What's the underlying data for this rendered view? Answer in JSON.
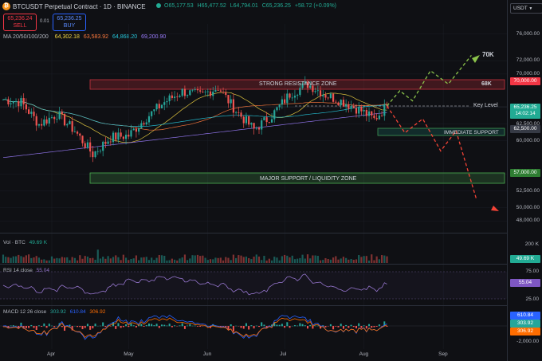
{
  "header": {
    "symbol": "BTCUSDT Perpetual Contract · 1D · BINANCE",
    "open": "O65,177.53",
    "high": "H65,477.52",
    "low": "L64,794.01",
    "close": "C65,236.25",
    "change": "+58.72 (+0.09%)",
    "currency": "USDT"
  },
  "trade": {
    "sell_price": "65,236.24",
    "sell_label": "SELL",
    "spread": "0.01",
    "buy_price": "65,236.25",
    "buy_label": "BUY"
  },
  "ma": {
    "label": "MA 20/50/100/200",
    "v1": "64,302.18",
    "v2": "63,583.92",
    "v3": "64,868.20",
    "v4": "69,200.90",
    "colors": [
      "#f5d742",
      "#ff7a3d",
      "#26c6da",
      "#9c7dff"
    ]
  },
  "annotations": {
    "resistance": "STRONG RESISTANCE ZONE",
    "target_68k": "68K",
    "target_70k": "70K",
    "key_level": "Key Level",
    "immediate_support": "IMMEDIATE SUPPORT",
    "major_support": "MAJOR SUPPORT / LIQUIDITY ZONE"
  },
  "price_tags": {
    "resistance": "70,000.00",
    "current": "65,236.25",
    "countdown": "14:02:14",
    "support": "62,500.00",
    "major": "57,000.00",
    "volume": "49.69 K",
    "rsi": "55.04",
    "macd1": "610.84",
    "macd2": "303.92",
    "macd3": "306.92"
  },
  "volume": {
    "label": "Vol · BTC",
    "value": "49.69 K",
    "axis": "200 K"
  },
  "rsi": {
    "label": "RSI 14 close",
    "value": "55.04",
    "axis_top": "75.00",
    "axis_bottom": "25.00"
  },
  "macd": {
    "label": "MACD 12 26 close",
    "v1": "303.92",
    "v2": "610.84",
    "v3": "306.92",
    "axis": "-2,000.00"
  },
  "chart_data": {
    "type": "candlestick",
    "title": "BTCUSDT Perpetual Contract · 1D · BINANCE",
    "y_ticks": [
      76000,
      72000,
      70000,
      65000,
      62500,
      60000,
      55000,
      52500,
      50000,
      48000
    ],
    "y_tick_labels": [
      "76,000.00",
      "72,000.00",
      "70,000.00",
      "65,000.00",
      "62,500.00",
      "60,000.00",
      "55,000.00",
      "52,500.00",
      "50,000.00",
      "48,000.00"
    ],
    "x_ticks": [
      "Apr",
      "May",
      "Jun",
      "Jul",
      "Aug",
      "Sep"
    ],
    "ylim": [
      46500,
      77500
    ],
    "close_path": [
      [
        "Mar 13",
        66200
      ],
      [
        "Mar 20",
        65800
      ],
      [
        "Mar 27",
        62500
      ],
      [
        "Apr 3",
        64000
      ],
      [
        "Apr 10",
        61500
      ],
      [
        "Apr 17",
        58000
      ],
      [
        "Apr 24",
        60500
      ],
      [
        "May 1",
        60800
      ],
      [
        "May 8",
        63500
      ],
      [
        "May 15",
        65800
      ],
      [
        "May 22",
        67400
      ],
      [
        "May 29",
        66800
      ],
      [
        "Jun 5",
        68000
      ],
      [
        "Jun 12",
        64500
      ],
      [
        "Jun 19",
        61700
      ],
      [
        "Jun 26",
        63800
      ],
      [
        "Jul 3",
        67000
      ],
      [
        "Jul 10",
        68500
      ],
      [
        "Jul 17",
        66900
      ],
      [
        "Jul 24",
        65800
      ],
      [
        "Jul 31",
        64500
      ],
      [
        "Aug 5",
        63200
      ],
      [
        "Aug 10",
        65236
      ]
    ],
    "zones": [
      {
        "name": "STRONG RESISTANCE ZONE",
        "low": 69000,
        "high": 70000
      },
      {
        "name": "IMMEDIATE SUPPORT",
        "low": 62000,
        "high": 63000
      },
      {
        "name": "MAJOR SUPPORT / LIQUIDITY ZONE",
        "low": 55800,
        "high": 57000
      }
    ],
    "key_level": 66700,
    "bull_scenario": [
      [
        "Aug 10",
        65236
      ],
      [
        "Aug 15",
        67500
      ],
      [
        "Aug 20",
        66000
      ],
      [
        "Aug 27",
        70500
      ],
      [
        "Sep 3",
        68500
      ],
      [
        "Sep 12",
        72800
      ]
    ],
    "bear_scenario": [
      [
        "Aug 10",
        65236
      ],
      [
        "Aug 17",
        61200
      ],
      [
        "Aug 24",
        63300
      ],
      [
        "Aug 31",
        58500
      ],
      [
        "Sep 6",
        61500
      ],
      [
        "Sep 14",
        51200
      ]
    ]
  }
}
